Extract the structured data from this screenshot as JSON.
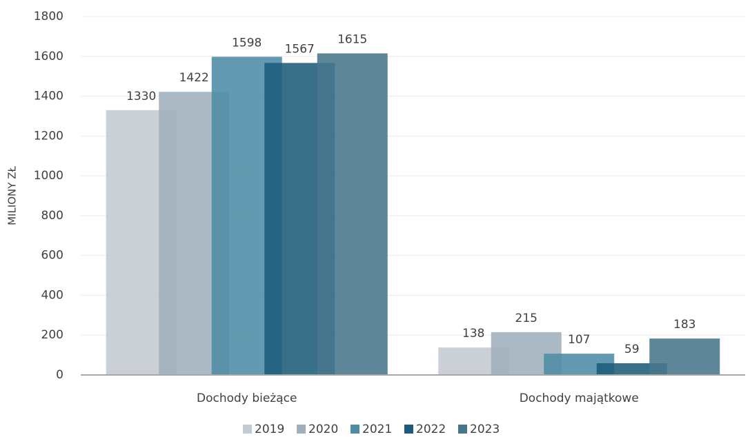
{
  "chart_data": {
    "type": "bar",
    "y_label": "MILIONY ZŁ",
    "categories": [
      "Dochody bieżące",
      "Dochody majątkowe"
    ],
    "series": [
      {
        "name": "2019",
        "color": "#c4cad1",
        "values": [
          1330,
          138
        ]
      },
      {
        "name": "2020",
        "color": "#9fafbc",
        "values": [
          1422,
          215
        ]
      },
      {
        "name": "2021",
        "color": "#4f8ca6",
        "values": [
          1598,
          107
        ]
      },
      {
        "name": "2022",
        "color": "#1c5c7a",
        "values": [
          1567,
          59
        ]
      },
      {
        "name": "2023",
        "color": "#47768b",
        "values": [
          1615,
          183
        ]
      }
    ],
    "ylim": [
      0,
      1800
    ],
    "yticks": [
      0,
      200,
      400,
      600,
      800,
      1000,
      1200,
      1400,
      1600,
      1800
    ],
    "grid": true,
    "legend": "bottom"
  }
}
